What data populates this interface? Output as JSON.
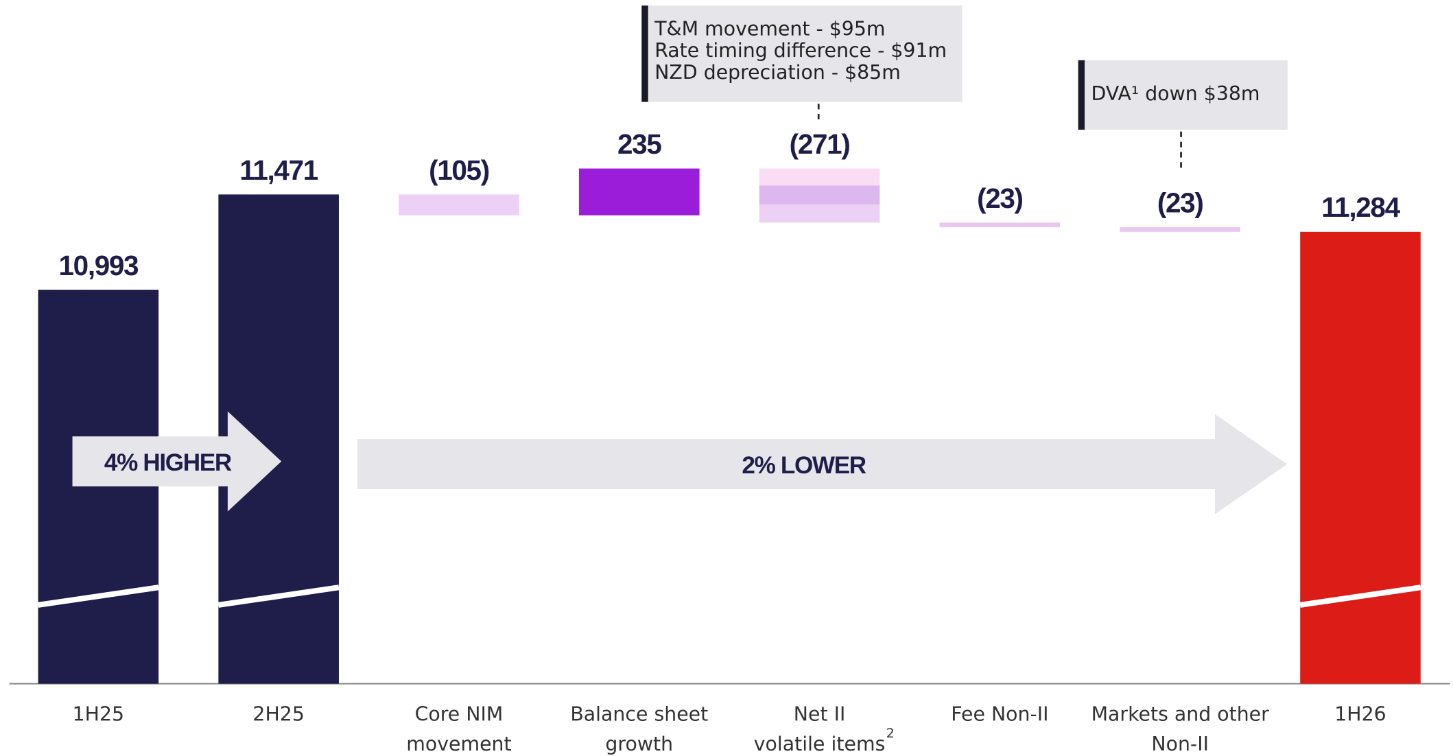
{
  "chart_data": {
    "type": "waterfall",
    "categories": [
      [
        "1H25"
      ],
      [
        "2H25"
      ],
      [
        "Core NIM",
        "movement"
      ],
      [
        "Balance sheet",
        "growth"
      ],
      [
        "Net II",
        "volatile items"
      ],
      [
        "Fee Non-II"
      ],
      [
        "Markets and other",
        "Non-II"
      ],
      [
        "1H26"
      ]
    ],
    "category_footnotes": [
      {
        "index": 4,
        "text": "2"
      }
    ],
    "kinds": [
      "total",
      "total",
      "delta",
      "delta",
      "delta",
      "delta",
      "delta",
      "total"
    ],
    "values": [
      10993,
      11471,
      -105,
      235,
      -271,
      -23,
      -23,
      11284
    ],
    "value_labels": [
      "10,993",
      "11,471",
      "(105)",
      "235",
      "(271)",
      "(23)",
      "(23)",
      "11,284"
    ],
    "colors": [
      "#1f1d4a",
      "#1f1d4a",
      "#ecd0f5",
      "#9b1cd9",
      "#ecd0f5",
      "#e8c8f0",
      "#e8c8f0",
      "#dc1c17"
    ],
    "segments": [
      {
        "index": 4,
        "values": [
          -85,
          -95,
          -91
        ],
        "colors": [
          "#fadcf5",
          "#dcb8ee",
          "#ecd0f5"
        ]
      }
    ],
    "ylim": [
      9020,
      12445
    ],
    "axis_break": true,
    "arrows": [
      {
        "text": "4% HIGHER",
        "from": 0,
        "to": 1
      },
      {
        "text": "2% LOWER",
        "from": 1,
        "to": 7
      }
    ],
    "callouts": [
      {
        "index": 4,
        "lines": [
          "T&M movement - $95m",
          "Rate timing difference - $91m",
          "NZD depreciation - $85m"
        ]
      },
      {
        "index": 6,
        "lines": [
          "DVA¹ down $38m"
        ]
      }
    ]
  }
}
